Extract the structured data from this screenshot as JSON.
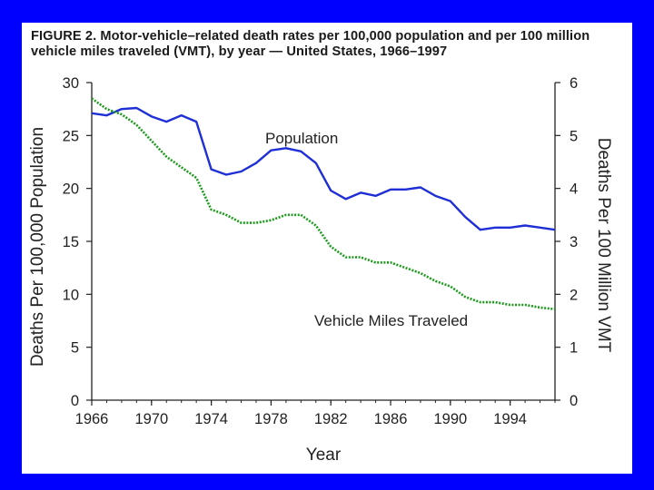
{
  "chart_data": {
    "type": "line",
    "title": "FIGURE 2. Motor-vehicle–related death rates per 100,000 population and per 100 million vehicle miles traveled (VMT), by year — United States, 1966–1997",
    "xlabel": "Year",
    "ylabel_left": "Deaths Per 100,000 Population",
    "ylabel_right": "Deaths Per 100 Million VMT",
    "xlim": [
      1966,
      1997
    ],
    "ylim_left": [
      0,
      30
    ],
    "ylim_right": [
      0,
      6
    ],
    "x_ticks": [
      "1966",
      "1970",
      "1974",
      "1978",
      "1982",
      "1986",
      "1990",
      "1994"
    ],
    "y_ticks_left": [
      "0",
      "5",
      "10",
      "15",
      "20",
      "25",
      "30"
    ],
    "y_ticks_right": [
      "0",
      "1",
      "2",
      "3",
      "4",
      "5",
      "6"
    ],
    "grid": false,
    "x": [
      1966,
      1967,
      1968,
      1969,
      1970,
      1971,
      1972,
      1973,
      1974,
      1975,
      1976,
      1977,
      1978,
      1979,
      1980,
      1981,
      1982,
      1983,
      1984,
      1985,
      1986,
      1987,
      1988,
      1989,
      1990,
      1991,
      1992,
      1993,
      1994,
      1995,
      1996,
      1997
    ],
    "series": [
      {
        "name": "Population",
        "label": "Population",
        "axis": "left",
        "color": "#1f2fd6",
        "style": "solid",
        "values": [
          27.1,
          26.9,
          27.5,
          27.6,
          26.8,
          26.3,
          26.9,
          26.3,
          21.8,
          21.3,
          21.6,
          22.4,
          23.6,
          23.8,
          23.5,
          22.4,
          19.8,
          19.0,
          19.6,
          19.3,
          19.9,
          19.9,
          20.1,
          19.3,
          18.8,
          17.3,
          16.1,
          16.3,
          16.3,
          16.5,
          16.3,
          16.1
        ]
      },
      {
        "name": "Vehicle Miles Traveled",
        "label": "Vehicle Miles Traveled",
        "axis": "right",
        "color": "#1a9a1a",
        "style": "dotted",
        "values": [
          5.7,
          5.5,
          5.4,
          5.2,
          4.9,
          4.6,
          4.4,
          4.2,
          3.6,
          3.5,
          3.35,
          3.35,
          3.4,
          3.5,
          3.5,
          3.3,
          2.9,
          2.7,
          2.7,
          2.6,
          2.6,
          2.5,
          2.4,
          2.25,
          2.15,
          1.95,
          1.85,
          1.85,
          1.8,
          1.8,
          1.75,
          1.72
        ]
      }
    ]
  }
}
